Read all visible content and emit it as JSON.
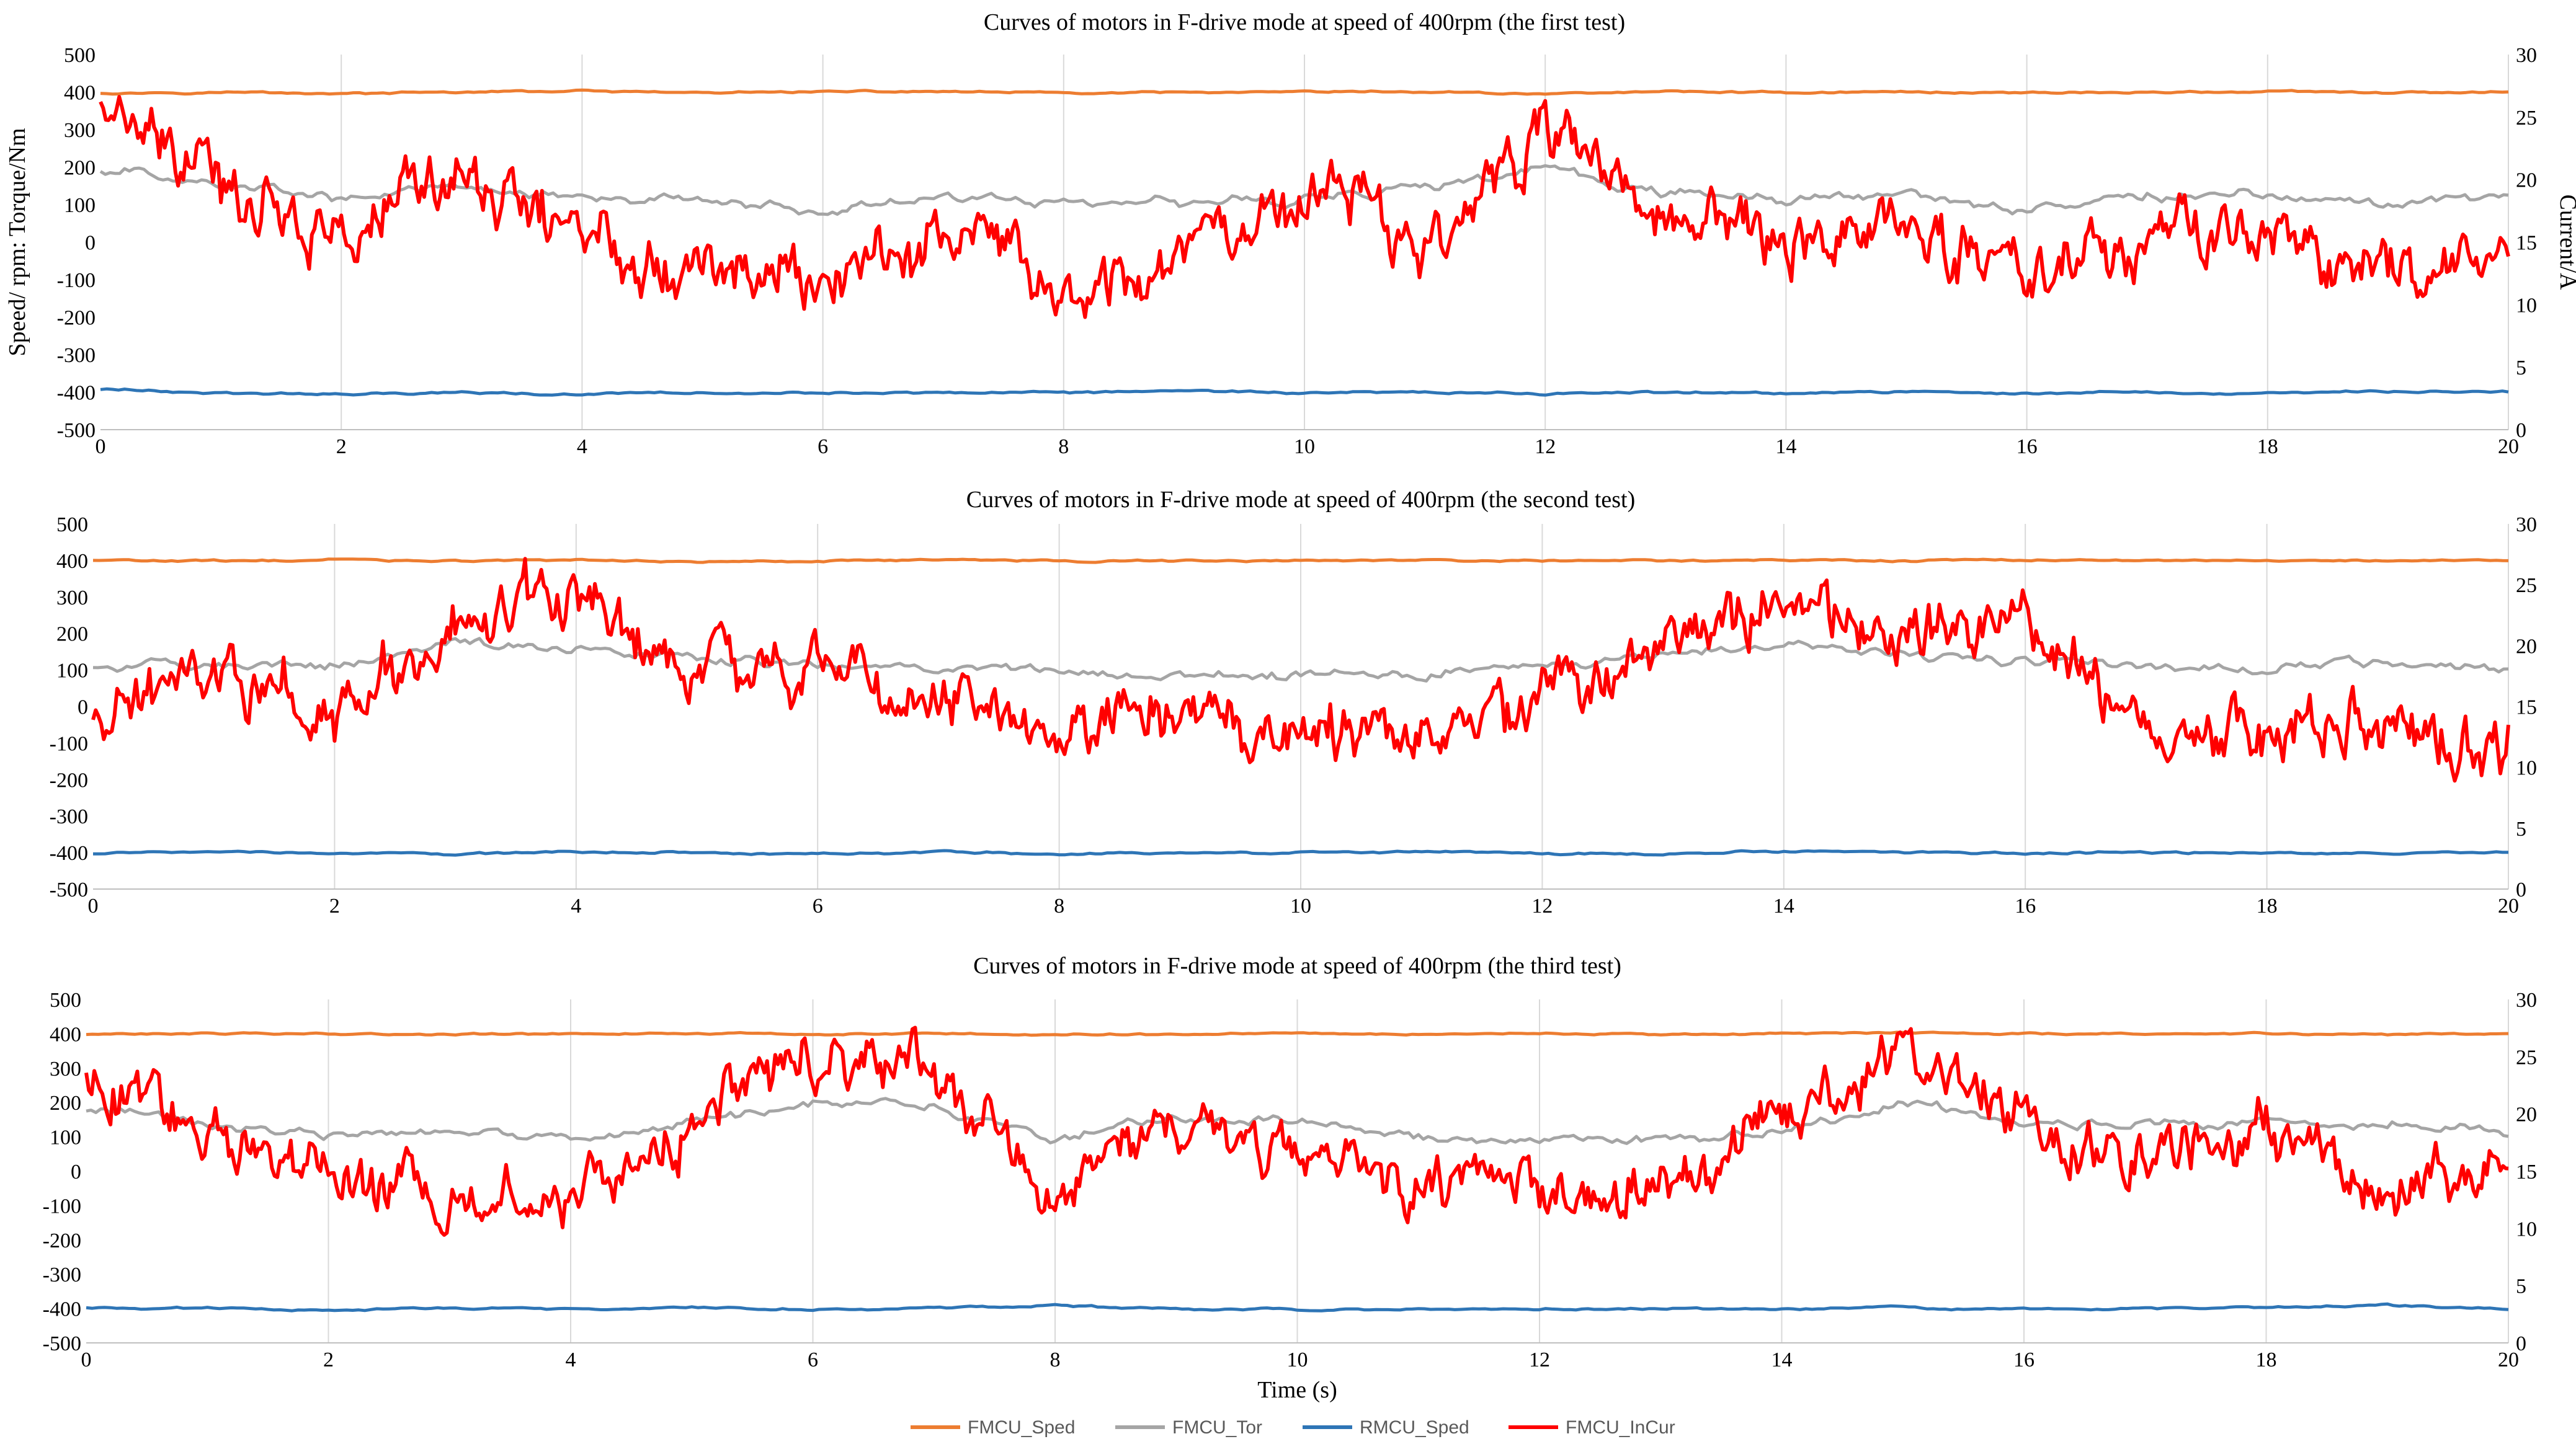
{
  "chart_data": [
    {
      "type": "line",
      "title": "Curves of motors in F-drive mode at speed of 400rpm  (the first test)",
      "xlabel": "",
      "ylabel": "Speed/ rpm: Torque/Nm",
      "y2label": "Current/A",
      "xlim": [
        0,
        20
      ],
      "ylim": [
        -500,
        500
      ],
      "y2lim": [
        0,
        30
      ],
      "xticks": [
        0,
        2,
        4,
        6,
        8,
        10,
        12,
        14,
        16,
        18,
        20
      ],
      "yticks": [
        500,
        400,
        300,
        200,
        100,
        0,
        -100,
        -200,
        -300,
        -400,
        -500
      ],
      "y2ticks": [
        30,
        25,
        20,
        15,
        10,
        5,
        0
      ],
      "grid": "vertical",
      "series": [
        {
          "name": "FMCU_Sped",
          "axis": "left",
          "x": [
            0,
            1,
            2,
            3,
            4,
            5,
            6,
            7,
            8,
            9,
            10,
            11,
            12,
            13,
            14,
            15,
            16,
            17,
            18,
            19,
            20
          ],
          "values": [
            398,
            401,
            397,
            399,
            403,
            398,
            400,
            402,
            397,
            399,
            401,
            400,
            396,
            402,
            399,
            401,
            398,
            400,
            402,
            397,
            400
          ]
        },
        {
          "name": "FMCU_Tor",
          "axis": "left",
          "x": [
            0,
            1,
            2,
            3,
            4,
            5,
            6,
            7,
            8,
            9,
            10,
            11,
            12,
            13,
            14,
            15,
            16,
            17,
            18,
            19,
            20
          ],
          "values": [
            190,
            150,
            115,
            140,
            120,
            105,
            85,
            120,
            110,
            105,
            120,
            150,
            190,
            130,
            110,
            130,
            90,
            120,
            130,
            110,
            125
          ]
        },
        {
          "name": "RMCU_Sped",
          "axis": "left",
          "x": [
            0,
            1,
            2,
            3,
            4,
            5,
            6,
            7,
            8,
            9,
            10,
            11,
            12,
            13,
            14,
            15,
            16,
            17,
            18,
            19,
            20
          ],
          "values": [
            -392,
            -402,
            -405,
            -400,
            -408,
            -398,
            -404,
            -400,
            -402,
            -397,
            -401,
            -400,
            -405,
            -399,
            -401,
            -398,
            -403,
            -400,
            -402,
            -399,
            -398
          ]
        },
        {
          "name": "FMCU_InCur",
          "axis": "right",
          "x": [
            0,
            1,
            2,
            3,
            4,
            5,
            6,
            7,
            8,
            9,
            10,
            11,
            12,
            13,
            14,
            15,
            16,
            17,
            18,
            19,
            20
          ],
          "values": [
            26,
            19,
            16,
            20,
            16,
            13,
            12,
            16,
            11,
            15,
            20,
            16,
            24,
            17,
            16,
            17,
            12,
            15,
            15,
            13,
            13
          ]
        }
      ]
    },
    {
      "type": "line",
      "title": "Curves of motors in F-drive mode at speed of 400rpm  (the second test)",
      "xlabel": "",
      "ylabel": "",
      "y2label": "",
      "xlim": [
        0,
        20
      ],
      "ylim": [
        -500,
        500
      ],
      "y2lim": [
        0,
        30
      ],
      "xticks": [
        0,
        2,
        4,
        6,
        8,
        10,
        12,
        14,
        16,
        18,
        20
      ],
      "yticks": [
        500,
        400,
        300,
        200,
        100,
        0,
        -100,
        -200,
        -300,
        -400,
        -500
      ],
      "y2ticks": [
        30,
        25,
        20,
        15,
        10,
        5,
        0
      ],
      "grid": "vertical",
      "series": [
        {
          "name": "FMCU_Sped",
          "axis": "left",
          "x": [
            0,
            1,
            2,
            3,
            4,
            5,
            6,
            7,
            8,
            9,
            10,
            11,
            12,
            13,
            14,
            15,
            16,
            17,
            18,
            19,
            20
          ],
          "values": [
            400,
            398,
            402,
            399,
            401,
            397,
            400,
            402,
            398,
            400,
            399,
            401,
            397,
            400,
            403,
            398,
            401,
            400,
            397,
            399,
            400
          ]
        },
        {
          "name": "FMCU_Tor",
          "axis": "left",
          "x": [
            0,
            1,
            2,
            3,
            4,
            5,
            6,
            7,
            8,
            9,
            10,
            11,
            12,
            13,
            14,
            15,
            16,
            17,
            18,
            19,
            20
          ],
          "values": [
            110,
            120,
            110,
            170,
            160,
            130,
            120,
            110,
            90,
            90,
            85,
            90,
            110,
            140,
            170,
            140,
            130,
            115,
            100,
            110,
            100
          ]
        },
        {
          "name": "RMCU_Sped",
          "axis": "left",
          "x": [
            0,
            1,
            2,
            3,
            4,
            5,
            6,
            7,
            8,
            9,
            10,
            11,
            12,
            13,
            14,
            15,
            16,
            17,
            18,
            19,
            20
          ],
          "values": [
            -402,
            -397,
            -400,
            -405,
            -398,
            -401,
            -403,
            -399,
            -405,
            -400,
            -402,
            -398,
            -401,
            -404,
            -396,
            -400,
            -402,
            -399,
            -401,
            -404,
            -400
          ]
        },
        {
          "name": "FMCU_InCur",
          "axis": "right",
          "x": [
            0,
            1,
            2,
            3,
            4,
            5,
            6,
            7,
            8,
            9,
            10,
            11,
            12,
            13,
            14,
            15,
            16,
            17,
            18,
            19,
            20
          ],
          "values": [
            14,
            19,
            14,
            22,
            23,
            17,
            18,
            15,
            13,
            15,
            12,
            14,
            15,
            20,
            25,
            20,
            21,
            13,
            12,
            14,
            12
          ]
        }
      ]
    },
    {
      "type": "line",
      "title": "Curves of  motors in F-drive mode at speed of 400rpm  (the third test)",
      "xlabel": "Time (s)",
      "ylabel": "",
      "y2label": "",
      "xlim": [
        0,
        20
      ],
      "ylim": [
        -500,
        500
      ],
      "y2lim": [
        0,
        30
      ],
      "xticks": [
        0,
        2,
        4,
        6,
        8,
        10,
        12,
        14,
        16,
        18,
        20
      ],
      "yticks": [
        500,
        400,
        300,
        200,
        100,
        0,
        -100,
        -200,
        -300,
        -400,
        -500
      ],
      "y2ticks": [
        30,
        25,
        20,
        15,
        10,
        5,
        0
      ],
      "grid": "vertical",
      "series": [
        {
          "name": "FMCU_Sped",
          "axis": "left",
          "x": [
            0,
            1,
            2,
            3,
            4,
            5,
            6,
            7,
            8,
            9,
            10,
            11,
            12,
            13,
            14,
            15,
            16,
            17,
            18,
            19,
            20
          ],
          "values": [
            398,
            400,
            401,
            398,
            400,
            402,
            399,
            401,
            397,
            400,
            402,
            399,
            400,
            398,
            401,
            403,
            399,
            400,
            402,
            398,
            400
          ]
        },
        {
          "name": "FMCU_Tor",
          "axis": "left",
          "x": [
            0,
            1,
            2,
            3,
            4,
            5,
            6,
            7,
            8,
            9,
            10,
            11,
            12,
            13,
            14,
            15,
            16,
            17,
            18,
            19,
            20
          ],
          "values": [
            180,
            130,
            100,
            110,
            95,
            140,
            200,
            190,
            90,
            160,
            140,
            100,
            100,
            95,
            120,
            200,
            140,
            130,
            150,
            140,
            110
          ]
        },
        {
          "name": "RMCU_Sped",
          "axis": "left",
          "x": [
            0,
            1,
            2,
            3,
            4,
            5,
            6,
            7,
            8,
            9,
            10,
            11,
            12,
            13,
            14,
            15,
            16,
            17,
            18,
            19,
            20
          ],
          "values": [
            -398,
            -400,
            -403,
            -399,
            -401,
            -397,
            -402,
            -400,
            -392,
            -401,
            -404,
            -400,
            -402,
            -399,
            -401,
            -397,
            -403,
            -400,
            -398,
            -392,
            -400
          ]
        },
        {
          "name": "FMCU_InCur",
          "axis": "right",
          "x": [
            0,
            1,
            2,
            3,
            4,
            5,
            6,
            7,
            8,
            9,
            10,
            11,
            12,
            13,
            14,
            15,
            16,
            17,
            18,
            19,
            20
          ],
          "values": [
            24,
            19,
            14,
            13,
            12,
            19,
            26,
            24,
            13,
            19,
            18,
            14,
            14,
            13,
            19,
            26,
            20,
            16,
            19,
            14,
            15
          ]
        }
      ]
    }
  ],
  "legend": {
    "placement": "bottom-center",
    "items": [
      {
        "name": "FMCU_Sped",
        "color": "#ed7d31"
      },
      {
        "name": "FMCU_Tor",
        "color": "#a5a5a5"
      },
      {
        "name": "RMCU_Sped",
        "color": "#2e75b6"
      },
      {
        "name": "FMCU_InCur",
        "color": "#ff0000"
      }
    ]
  },
  "colors": {
    "FMCU_Sped": "#ed7d31",
    "FMCU_Tor": "#a5a5a5",
    "RMCU_Sped": "#2e75b6",
    "FMCU_InCur": "#ff0000",
    "grid": "#d9d9d9",
    "axis": "#bfbfbf"
  }
}
